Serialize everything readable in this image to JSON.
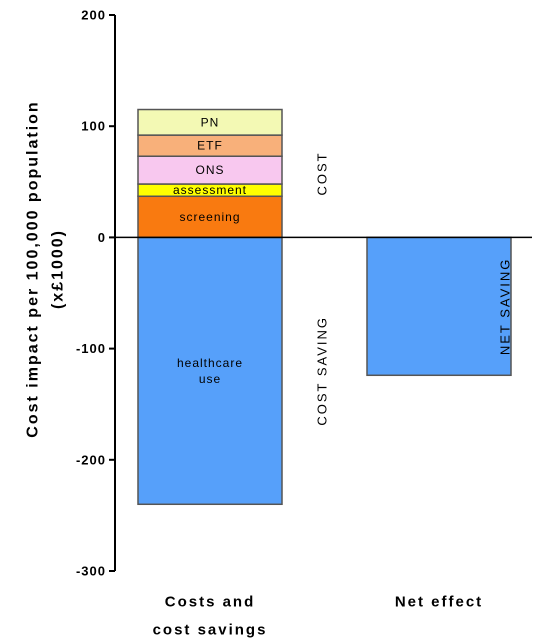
{
  "chart_data": {
    "type": "bar",
    "ylabel_lines": [
      "Cost impact per 100,000 population",
      "(x£1000)"
    ],
    "ylim": [
      -300,
      200
    ],
    "yticks": [
      -300,
      -200,
      -100,
      0,
      100,
      200
    ],
    "categories": [
      {
        "lines": [
          "Costs and",
          "cost savings"
        ]
      },
      {
        "lines": [
          "Net effect"
        ]
      }
    ],
    "stacks": [
      {
        "category_index": 0,
        "segments": [
          {
            "label": "healthcare use",
            "label_lines": [
              "healthcare",
              "use"
            ],
            "from": -240,
            "to": 0,
            "color": "#56a0fa"
          },
          {
            "label": "screening",
            "label_lines": [
              "screening"
            ],
            "from": 0,
            "to": 37,
            "color": "#f97a10"
          },
          {
            "label": "assessment",
            "label_lines": [
              "assessment"
            ],
            "from": 37,
            "to": 48,
            "color": "#ffff00"
          },
          {
            "label": "ONS",
            "label_lines": [
              "ONS"
            ],
            "from": 48,
            "to": 73,
            "color": "#f8c8ef"
          },
          {
            "label": "ETF",
            "label_lines": [
              "ETF"
            ],
            "from": 73,
            "to": 92,
            "color": "#f8b07a"
          },
          {
            "label": "PN",
            "label_lines": [
              "PN"
            ],
            "from": 92,
            "to": 115,
            "color": "#f3f9b4"
          }
        ]
      },
      {
        "category_index": 1,
        "segments": [
          {
            "label": "",
            "label_lines": [],
            "from": -124,
            "to": 0,
            "color": "#56a0fa"
          }
        ]
      }
    ],
    "annotations": [
      {
        "text": "COST",
        "category_index": 0,
        "from": 0,
        "to": 115
      },
      {
        "text": "COST SAVING",
        "category_index": 0,
        "from": -240,
        "to": 0
      },
      {
        "text": "NET SAVING",
        "category_index": 1,
        "from": -124,
        "to": 0
      }
    ]
  }
}
